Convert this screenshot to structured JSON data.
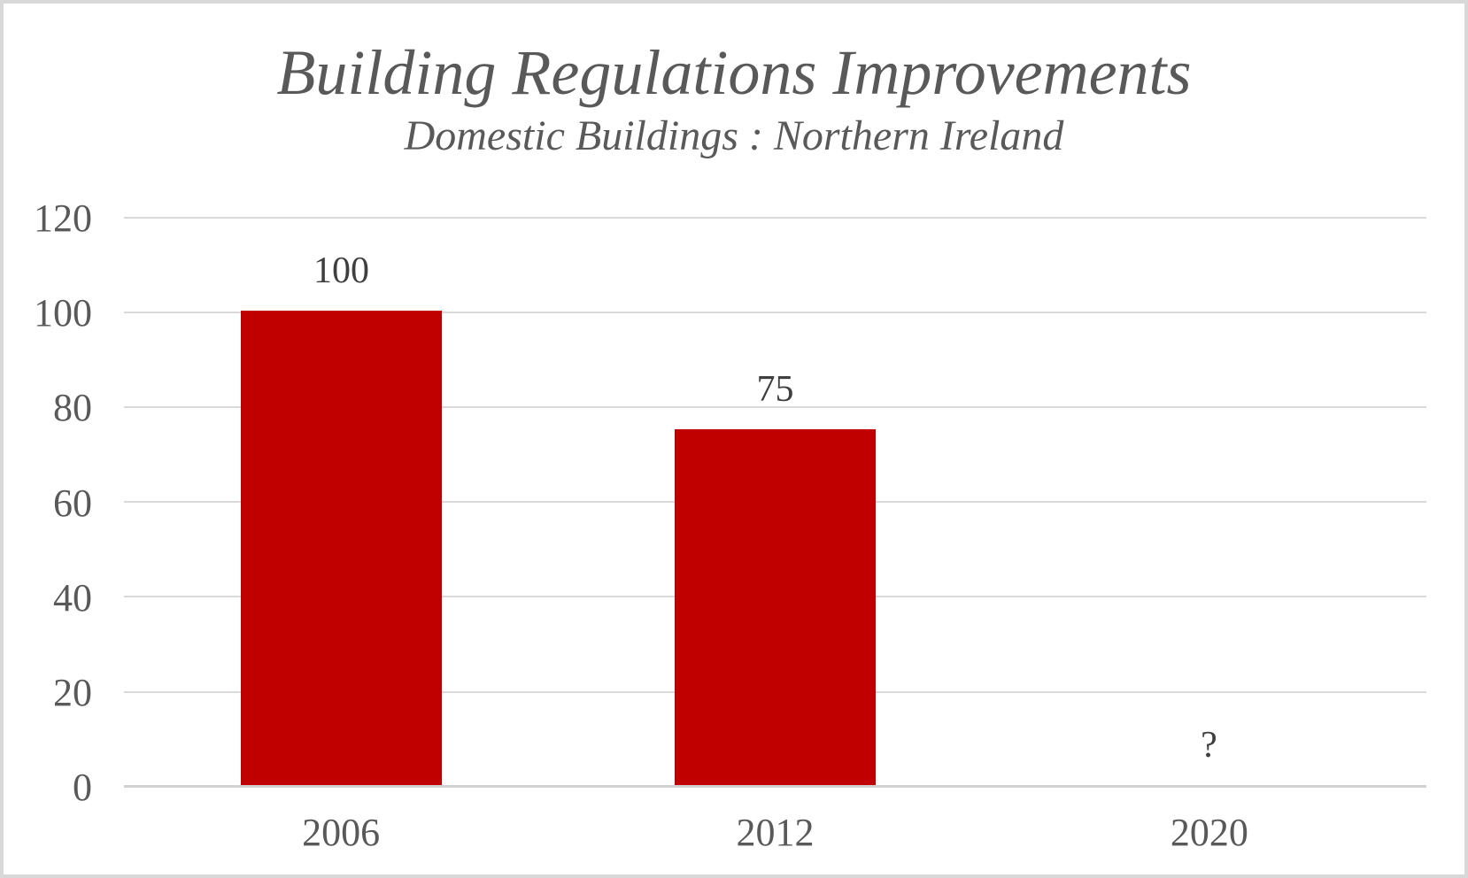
{
  "chart_data": {
    "type": "bar",
    "title": "Building Regulations Improvements",
    "subtitle": "Domestic Buildings : Northern Ireland",
    "categories": [
      "2006",
      "2012",
      "2020"
    ],
    "values": [
      100,
      75,
      null
    ],
    "bar_labels": [
      "100",
      "75",
      "?"
    ],
    "yticks": [
      "120",
      "100",
      "80",
      "60",
      "40",
      "20",
      "0"
    ],
    "ylim": [
      0,
      120
    ],
    "xlabel": "",
    "ylabel": "",
    "grid": "horizontal-only",
    "legend": "none",
    "colors": {
      "bar": "#c00000",
      "axis_text": "#595959",
      "title_text": "#595959",
      "data_label_text": "#3f3f3f",
      "gridline": "#d9d9d9",
      "frame_border": "#d8d8d8",
      "background": "#ffffff"
    }
  }
}
